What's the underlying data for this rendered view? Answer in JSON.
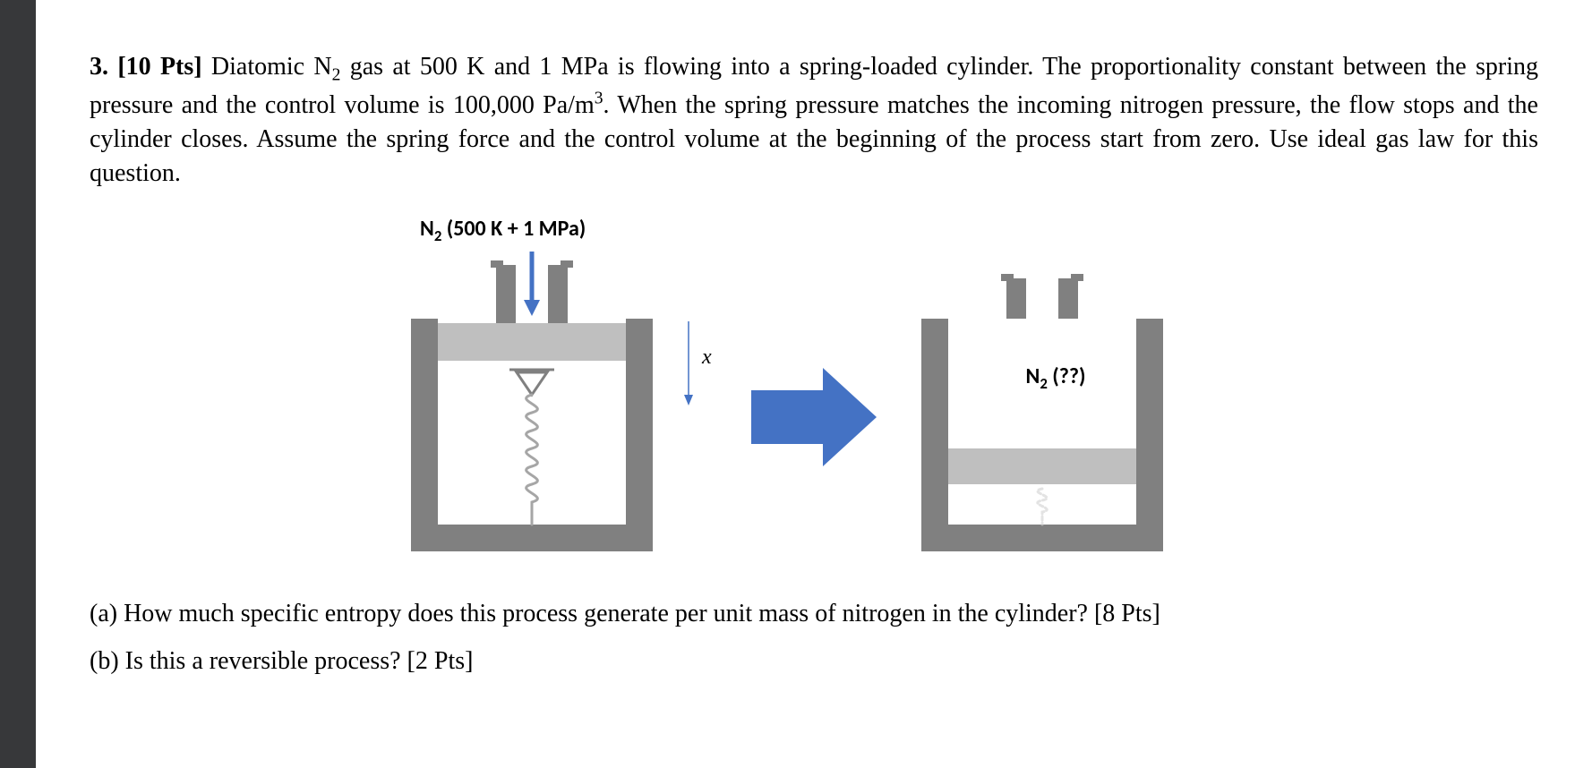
{
  "problem": {
    "number": "3.",
    "points_label": "[10 Pts]",
    "statement_html": "Diatomic N<sub>2</sub> gas at 500 K and 1 MPa is flowing into a spring-loaded cylinder. The proportionality constant between the spring pressure and the control volume is 100,000 Pa/m<sup>3</sup>. When the spring pressure matches the incoming nitrogen pressure, the flow stops and the cylinder closes. Assume the spring force and the control volume at the beginning of the process start from zero. Use ideal gas law for this question."
  },
  "figure": {
    "inlet_label_html": "N<sub>2</sub> (500 K + 1 MPa)",
    "x_label": "x",
    "final_label_html": "N<sub>2</sub> (??)",
    "colors": {
      "cylinder_body": "#808080",
      "piston": "#bfbfbf",
      "inner": "#ffffff",
      "arrow": "#4472c4",
      "spring": "#a6a6a6",
      "spring_faded": "#d0d0d0",
      "text": "#000000"
    }
  },
  "parts": {
    "a": {
      "label": "(a)",
      "text": "How much specific entropy does this process generate per unit mass of nitrogen in the cylinder? [8 Pts]"
    },
    "b": {
      "label": "(b)",
      "text": "Is this a reversible process? [2 Pts]"
    }
  }
}
